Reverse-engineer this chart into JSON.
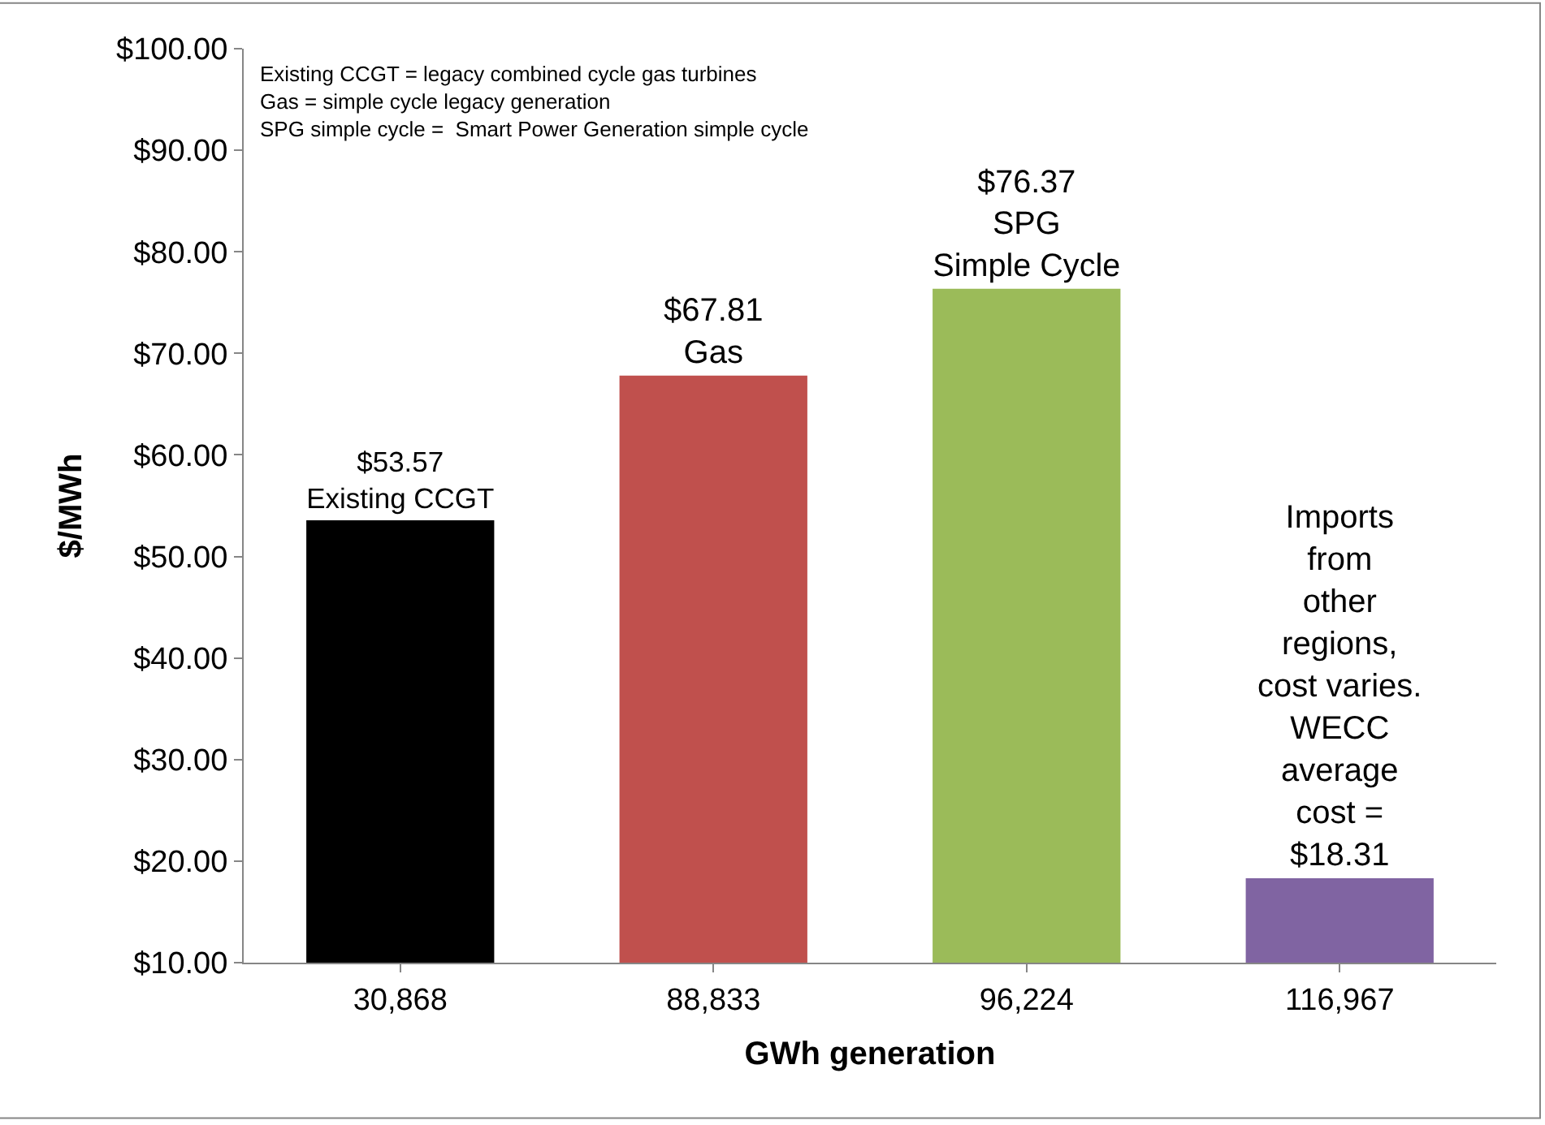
{
  "chart_data": {
    "type": "bar",
    "xlabel": "GWh generation",
    "ylabel": "$/MWh",
    "categories": [
      "30,868",
      "88,833",
      "96,224",
      "116,967"
    ],
    "values": [
      53.57,
      67.81,
      76.37,
      18.31
    ],
    "colors": [
      "#000000",
      "#c0504d",
      "#9bbb59",
      "#8064a2"
    ],
    "value_labels": [
      "$53.57\nExisting CCGT",
      "$67.81\nGas",
      "$76.37\nSPG\nSimple Cycle",
      "Imports\nfrom\nother\nregions,\ncost varies.\nWECC\naverage\ncost =\n$18.31"
    ],
    "ylim": [
      10,
      100
    ],
    "yticks": [
      {
        "value": 10,
        "label": "$10.00"
      },
      {
        "value": 20,
        "label": "$20.00"
      },
      {
        "value": 30,
        "label": "$30.00"
      },
      {
        "value": 40,
        "label": "$40.00"
      },
      {
        "value": 50,
        "label": "$50.00"
      },
      {
        "value": 60,
        "label": "$60.00"
      },
      {
        "value": 70,
        "label": "$70.00"
      },
      {
        "value": 80,
        "label": "$80.00"
      },
      {
        "value": 90,
        "label": "$90.00"
      },
      {
        "value": 100,
        "label": "$100.00"
      }
    ],
    "annotations": [
      "Existing CCGT = legacy combined cycle gas turbines\nGas = simple cycle legacy generation\nSPG simple cycle =  Smart Power Generation simple cycle"
    ]
  }
}
